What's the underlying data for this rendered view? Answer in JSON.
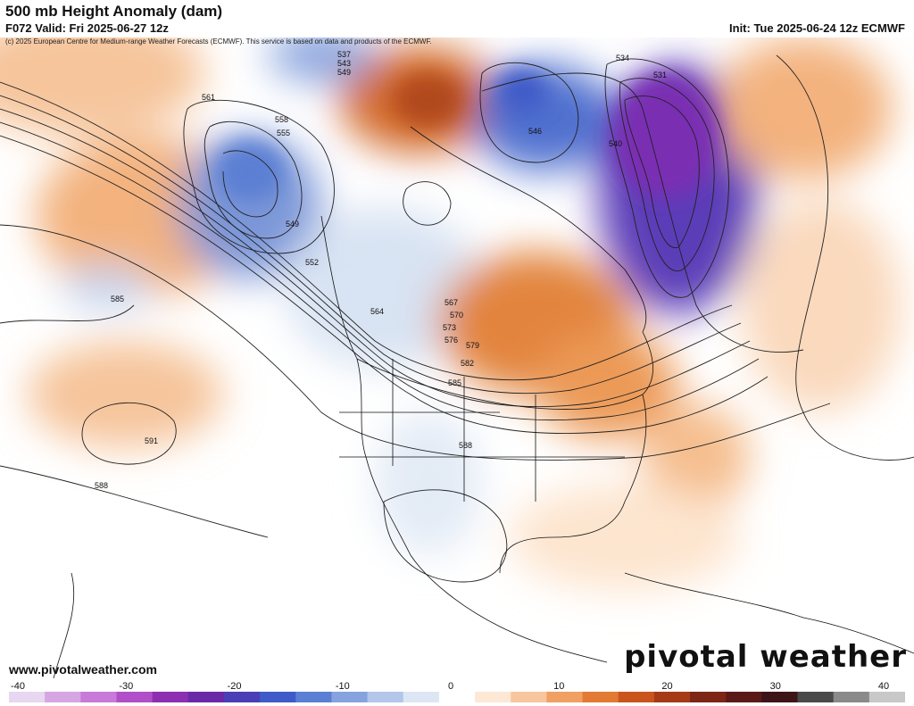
{
  "header": {
    "title": "500 mb Height Anomaly (dam)",
    "valid": "F072 Valid: Fri 2025-06-27 12z",
    "init": "Init: Tue 2025-06-24 12z ECMWF",
    "credit": "(c) 2025 European Centre for Medium-range Weather Forecasts (ECMWF). This service is based on data and products of the ECMWF."
  },
  "footer": {
    "website": "www.pivotalweather.com",
    "brand": "pivotal weather"
  },
  "colorbar": {
    "ticks": [
      "-40",
      "-30",
      "-20",
      "-10",
      "0",
      "10",
      "20",
      "30",
      "40"
    ],
    "colors": [
      "#e7d7f0",
      "#d6a6e2",
      "#c77ad8",
      "#b14fc9",
      "#8c2fb0",
      "#6a2aa8",
      "#4b3fb6",
      "#3f5bc8",
      "#5b7fd3",
      "#86a3df",
      "#b4c6ea",
      "#dde6f4",
      "#ffffff",
      "#fde8d6",
      "#f8c69e",
      "#f0a062",
      "#e27a35",
      "#c9551c",
      "#a53a17",
      "#7e2616",
      "#5a1b18",
      "#3d1418",
      "#4a4a4a",
      "#8a8a8a",
      "#c8c8c8"
    ]
  },
  "contours": [
    {
      "label": "537"
    },
    {
      "label": "543"
    },
    {
      "label": "549"
    },
    {
      "label": "552"
    },
    {
      "label": "555"
    },
    {
      "label": "558"
    },
    {
      "label": "561"
    },
    {
      "label": "564"
    },
    {
      "label": "567"
    },
    {
      "label": "570"
    },
    {
      "label": "573"
    },
    {
      "label": "576"
    },
    {
      "label": "579"
    },
    {
      "label": "582"
    },
    {
      "label": "585"
    },
    {
      "label": "588"
    },
    {
      "label": "591"
    },
    {
      "label": "531"
    },
    {
      "label": "534"
    },
    {
      "label": "540"
    },
    {
      "label": "546"
    },
    {
      "label": "549"
    },
    {
      "label": "585"
    },
    {
      "label": "588"
    }
  ]
}
